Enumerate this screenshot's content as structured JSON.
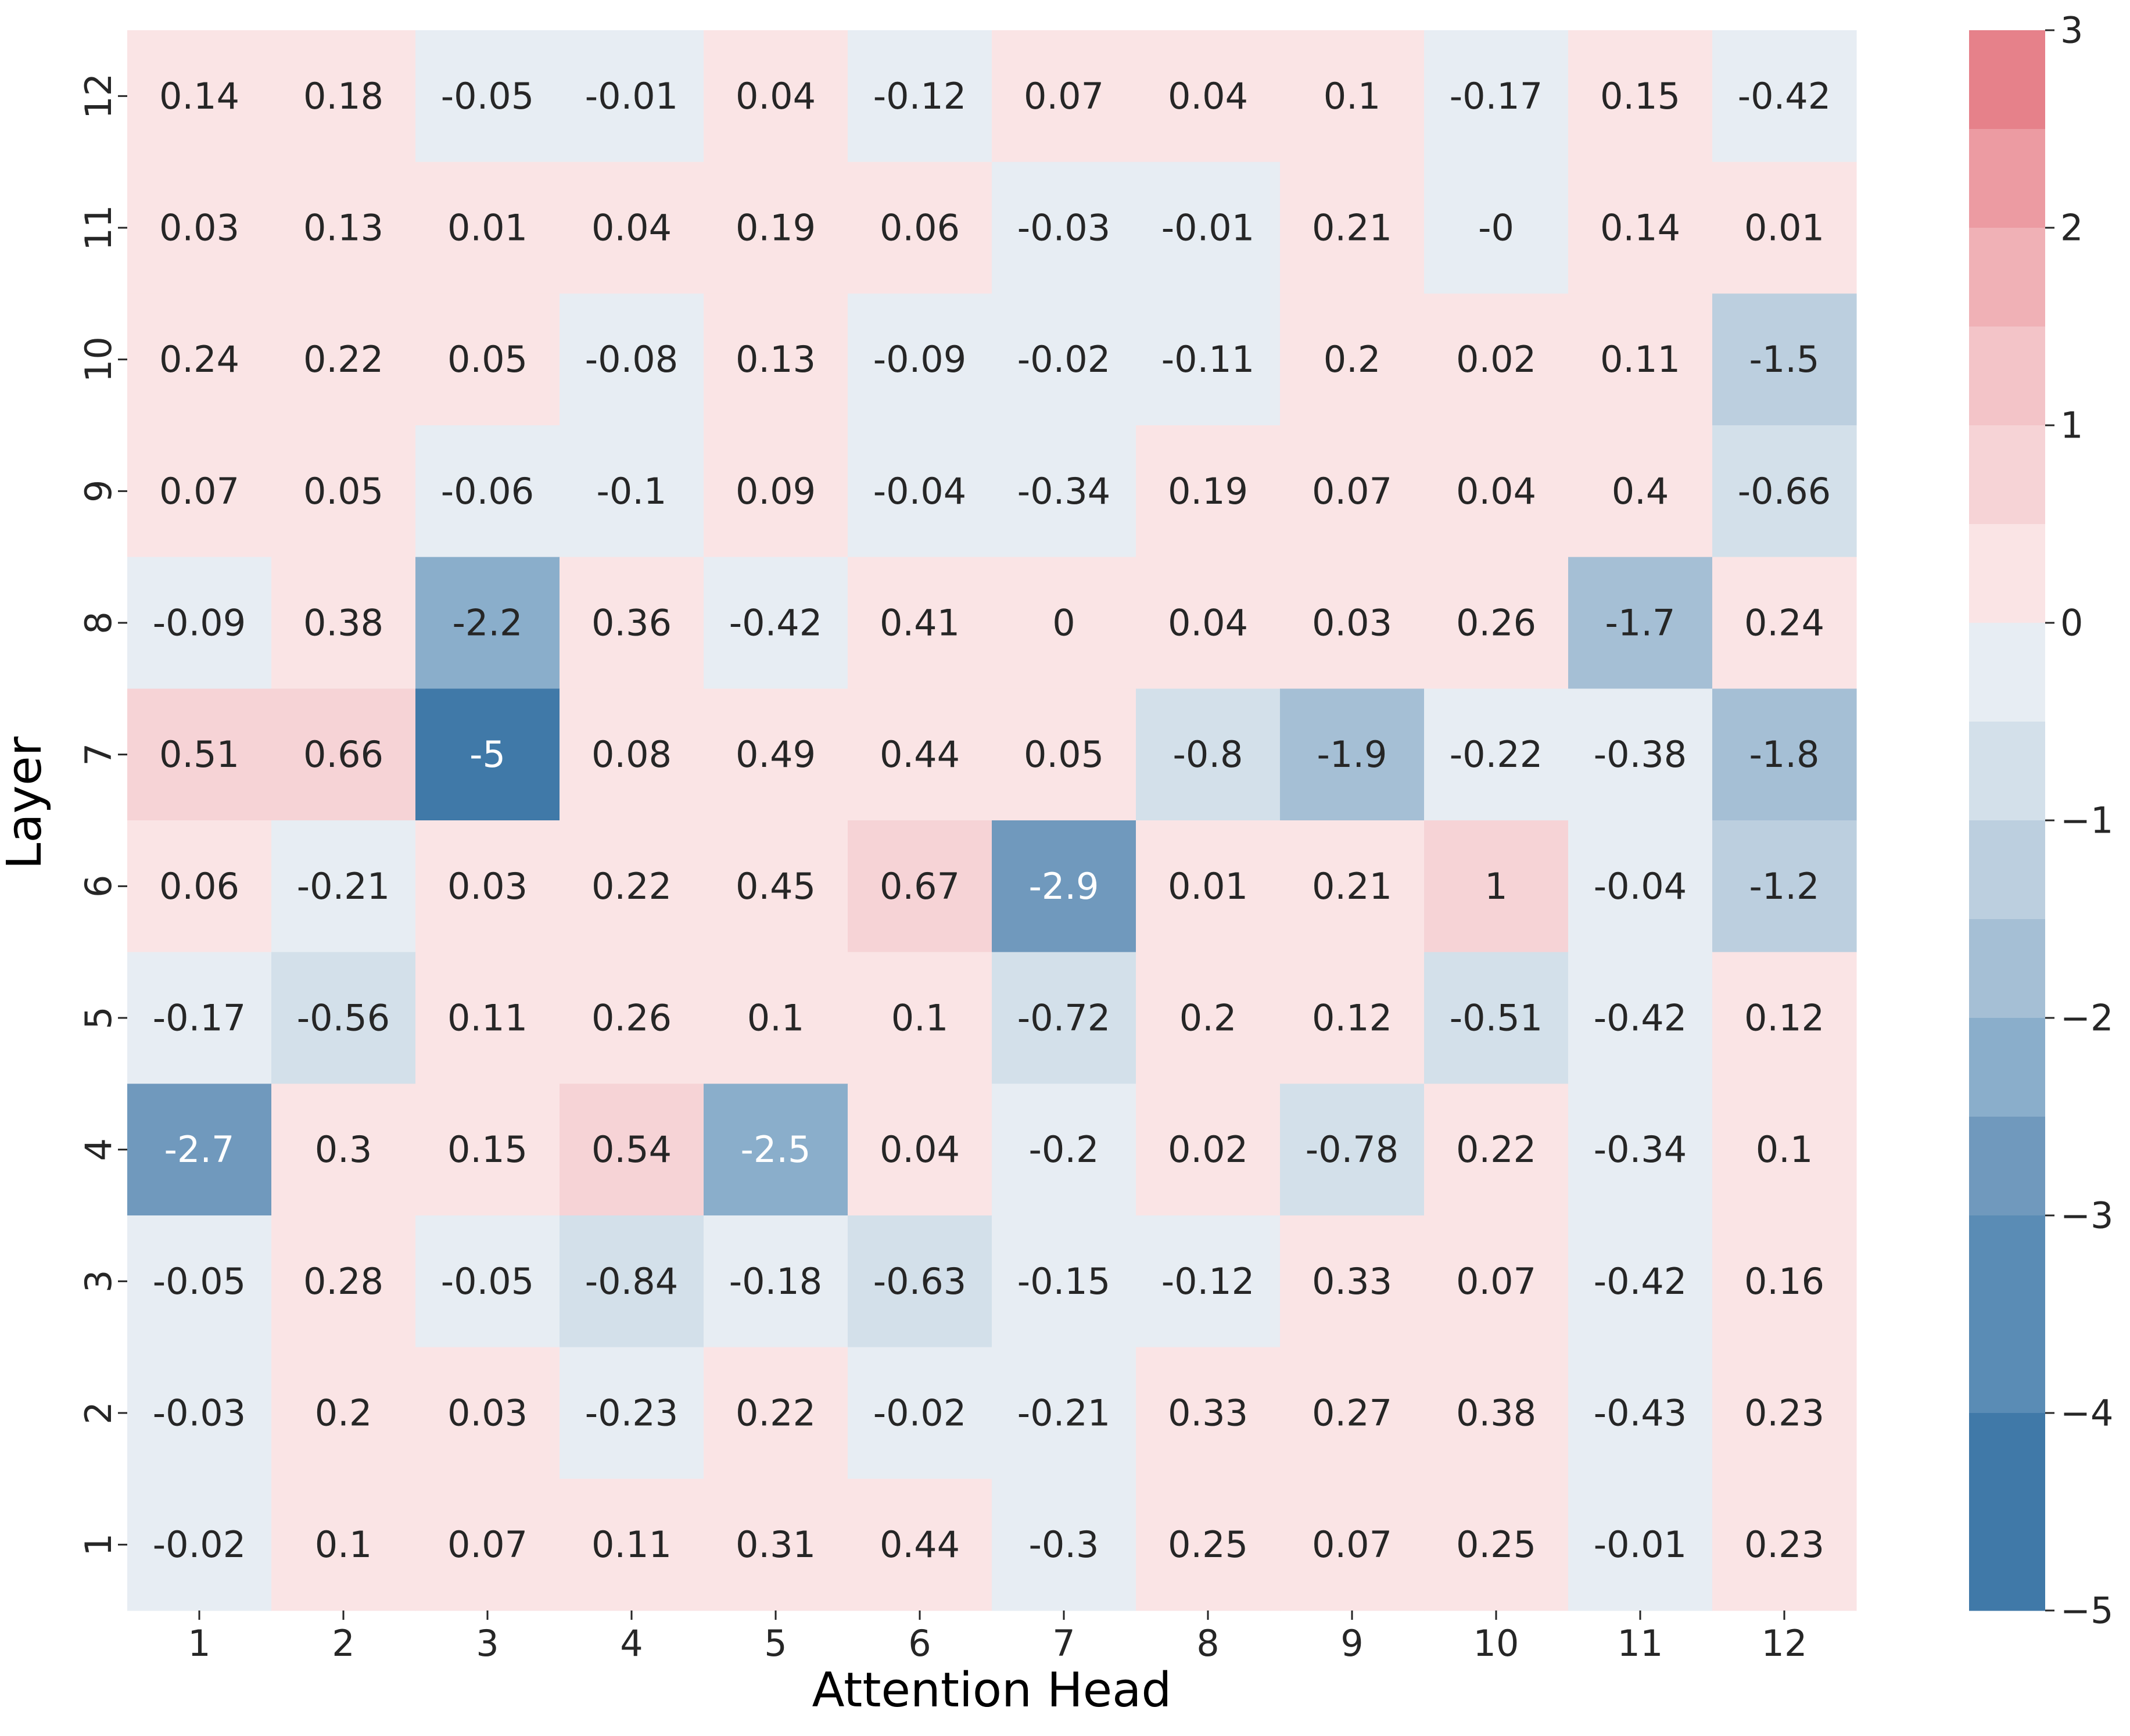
{
  "chart_data": {
    "type": "heatmap",
    "title": "",
    "xlabel": "Attention Head",
    "ylabel": "Layer",
    "x_categories": [
      "1",
      "2",
      "3",
      "4",
      "5",
      "6",
      "7",
      "8",
      "9",
      "10",
      "11",
      "12"
    ],
    "y_categories": [
      "12",
      "11",
      "10",
      "9",
      "8",
      "7",
      "6",
      "5",
      "4",
      "3",
      "2",
      "1"
    ],
    "values": [
      [
        "0.14",
        "0.18",
        "-0.05",
        "-0.01",
        "0.04",
        "-0.12",
        "0.07",
        "0.04",
        "0.1",
        "-0.17",
        "0.15",
        "-0.42"
      ],
      [
        "0.03",
        "0.13",
        "0.01",
        "0.04",
        "0.19",
        "0.06",
        "-0.03",
        "-0.01",
        "0.21",
        "-0",
        "0.14",
        "0.01"
      ],
      [
        "0.24",
        "0.22",
        "0.05",
        "-0.08",
        "0.13",
        "-0.09",
        "-0.02",
        "-0.11",
        "0.2",
        "0.02",
        "0.11",
        "-1.5"
      ],
      [
        "0.07",
        "0.05",
        "-0.06",
        "-0.1",
        "0.09",
        "-0.04",
        "-0.34",
        "0.19",
        "0.07",
        "0.04",
        "0.4",
        "-0.66"
      ],
      [
        "-0.09",
        "0.38",
        "-2.2",
        "0.36",
        "-0.42",
        "0.41",
        "0",
        "0.04",
        "0.03",
        "0.26",
        "-1.7",
        "0.24"
      ],
      [
        "0.51",
        "0.66",
        "-5",
        "0.08",
        "0.49",
        "0.44",
        "0.05",
        "-0.8",
        "-1.9",
        "-0.22",
        "-0.38",
        "-1.8"
      ],
      [
        "0.06",
        "-0.21",
        "0.03",
        "0.22",
        "0.45",
        "0.67",
        "-2.9",
        "0.01",
        "0.21",
        "1",
        "-0.04",
        "-1.2"
      ],
      [
        "-0.17",
        "-0.56",
        "0.11",
        "0.26",
        "0.1",
        "0.1",
        "-0.72",
        "0.2",
        "0.12",
        "-0.51",
        "-0.42",
        "0.12"
      ],
      [
        "-2.7",
        "0.3",
        "0.15",
        "0.54",
        "-2.5",
        "0.04",
        "-0.2",
        "0.02",
        "-0.78",
        "0.22",
        "-0.34",
        "0.1"
      ],
      [
        "-0.05",
        "0.28",
        "-0.05",
        "-0.84",
        "-0.18",
        "-0.63",
        "-0.15",
        "-0.12",
        "0.33",
        "0.07",
        "-0.42",
        "0.16"
      ],
      [
        "-0.03",
        "0.2",
        "0.03",
        "-0.23",
        "0.22",
        "-0.02",
        "-0.21",
        "0.33",
        "0.27",
        "0.38",
        "-0.43",
        "0.23"
      ],
      [
        "-0.02",
        "0.1",
        "0.07",
        "0.11",
        "0.31",
        "0.44",
        "-0.3",
        "0.25",
        "0.07",
        "0.25",
        "-0.01",
        "0.23"
      ]
    ],
    "colorbar": {
      "range": [
        -5,
        3
      ],
      "ticks": [
        3,
        2,
        1,
        0,
        -1,
        -2,
        -3,
        -4,
        -5
      ],
      "tick_labels": [
        "3",
        "2",
        "1",
        "0",
        "−1",
        "−2",
        "−3",
        "−4",
        "−5"
      ],
      "bins": [
        {
          "from": 2.5,
          "to": 3.0,
          "color": "#e6818a"
        },
        {
          "from": 2.0,
          "to": 2.5,
          "color": "#ec9ba2"
        },
        {
          "from": 1.5,
          "to": 2.0,
          "color": "#f0b1b6"
        },
        {
          "from": 1.0,
          "to": 1.5,
          "color": "#f3c4c8"
        },
        {
          "from": 0.5,
          "to": 1.0,
          "color": "#f6d3d6"
        },
        {
          "from": 0.0,
          "to": 0.5,
          "color": "#fae4e5"
        },
        {
          "from": -0.5,
          "to": 0.0,
          "color": "#e7edf3"
        },
        {
          "from": -1.0,
          "to": -0.5,
          "color": "#d3e0ea"
        },
        {
          "from": -1.5,
          "to": -1.0,
          "color": "#bccfdf"
        },
        {
          "from": -2.0,
          "to": -1.5,
          "color": "#a5bfd5"
        },
        {
          "from": -2.5,
          "to": -2.0,
          "color": "#8aaecb"
        },
        {
          "from": -3.0,
          "to": -2.5,
          "color": "#7099bd"
        },
        {
          "from": -4.0,
          "to": -3.0,
          "color": "#5a8cb5"
        },
        {
          "from": -5.0,
          "to": -4.0,
          "color": "#4079a8"
        }
      ]
    },
    "cell_text_color_dark": "#262626",
    "cell_text_color_light": "#ffffff",
    "grid": false,
    "legend": "colorbar-right"
  }
}
